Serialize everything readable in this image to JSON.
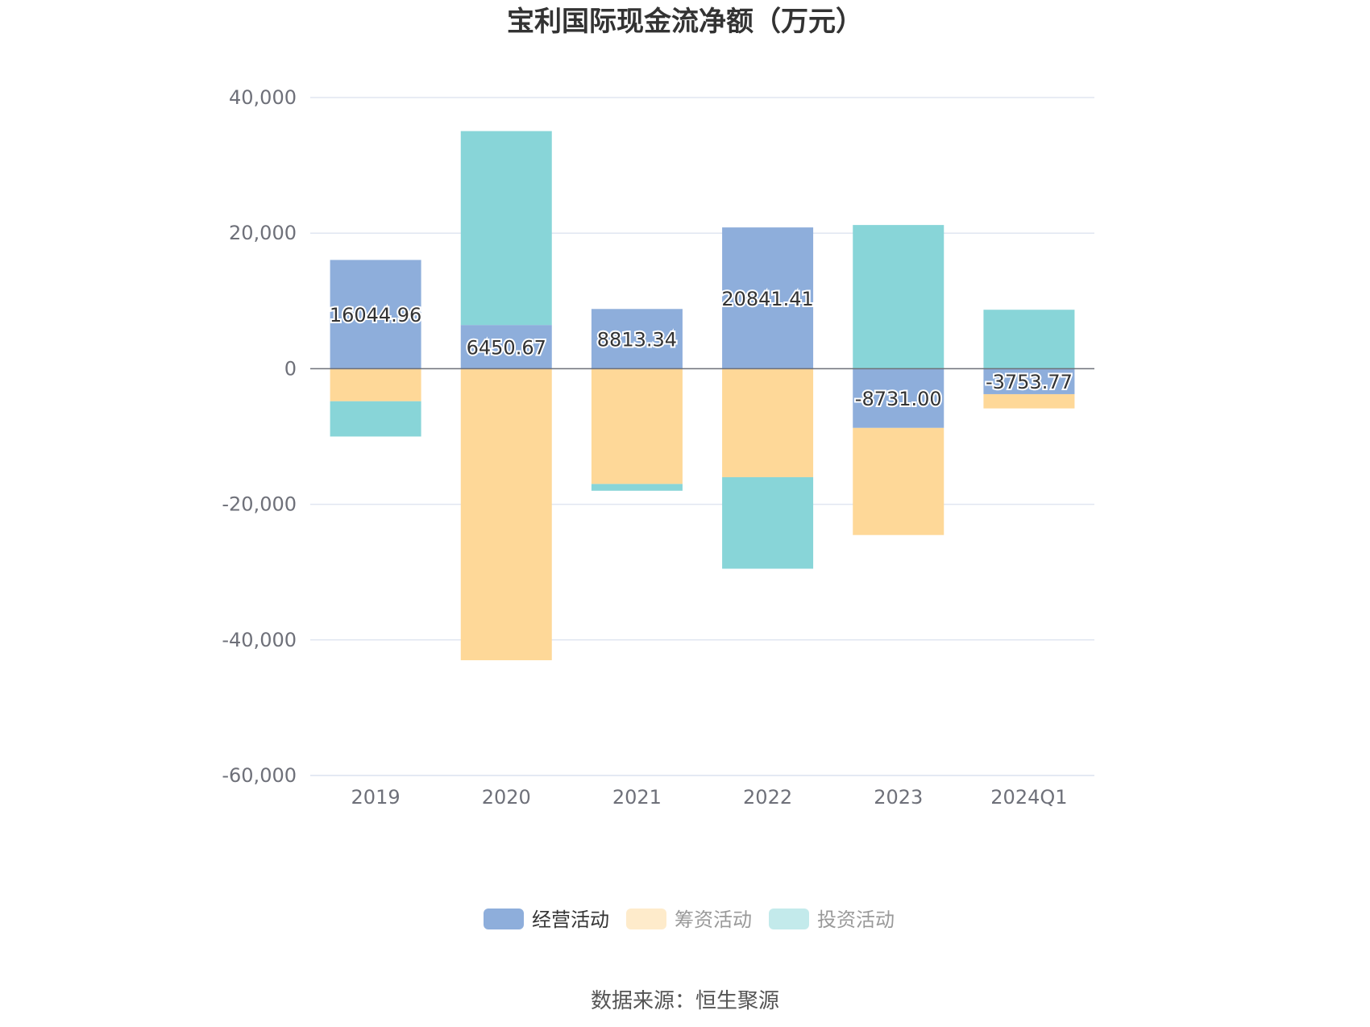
{
  "chart_data": {
    "type": "bar",
    "stacked": true,
    "title": "宝利国际现金流净额（万元）",
    "categories": [
      "2019",
      "2020",
      "2021",
      "2022",
      "2023",
      "2024Q1"
    ],
    "series": [
      {
        "name": "经营活动",
        "color": "#8eaedb",
        "values": [
          16044.96,
          6450.67,
          8813.34,
          20841.41,
          -8731.0,
          -3753.77
        ]
      },
      {
        "name": "筹资活动",
        "color": "#fed898",
        "values": [
          -4800,
          -43000,
          -17000,
          -16000,
          -15800,
          -2100
        ]
      },
      {
        "name": "投资活动",
        "color": "#88d5d8",
        "values": [
          -5200,
          28600,
          -1000,
          -13500,
          21200,
          8700
        ]
      }
    ],
    "data_labels": [
      "16044.96",
      "6450.67",
      "8813.34",
      "20841.41",
      "-8731.00",
      "-3753.77"
    ],
    "ylim": [
      -60000,
      40000
    ],
    "yticks": [
      40000,
      20000,
      0,
      -20000,
      -40000,
      -60000
    ],
    "ytick_labels": [
      "40,000",
      "20,000",
      "0",
      "-20,000",
      "-40,000",
      "-60,000"
    ],
    "grid": true,
    "legend_position": "bottom-center",
    "legend_inactive_color": "#999999",
    "legend_active_color": "#333333"
  },
  "source_text": "数据来源：恒生聚源"
}
